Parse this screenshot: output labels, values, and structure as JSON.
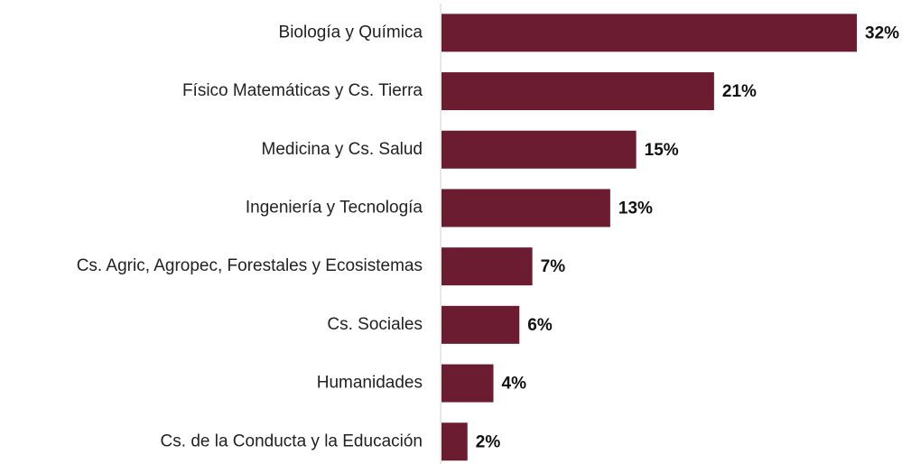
{
  "chart_data": {
    "type": "barh",
    "categories": [
      "Biología y Química",
      "Físico Matemáticas y Cs. Tierra",
      "Medicina y Cs. Salud",
      "Ingeniería y Tecnología",
      "Cs. Agric, Agropec, Forestales y Ecosistemas",
      "Cs. Sociales",
      "Humanidades",
      "Cs. de la Conducta y la Educación"
    ],
    "values": [
      32,
      21,
      15,
      13,
      7,
      6,
      4,
      2
    ],
    "value_labels": [
      "32%",
      "21%",
      "15%",
      "13%",
      "7%",
      "6%",
      "4%",
      "2%"
    ],
    "color": "#6b1c31"
  }
}
